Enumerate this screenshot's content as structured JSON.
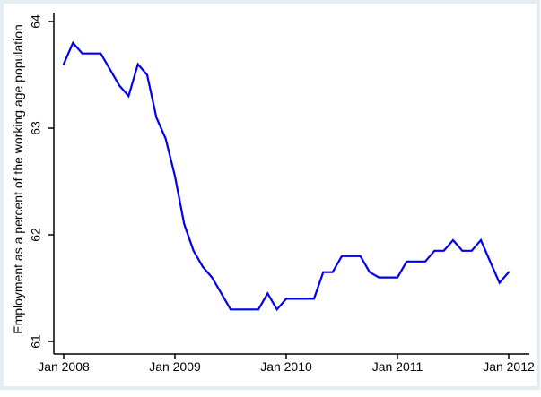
{
  "figure": {
    "background_color": "#ffffff",
    "frame_color": "#e3edf2",
    "axis_color": "#000000",
    "text_color": "#000000"
  },
  "chart_data": {
    "type": "line",
    "title": "",
    "xlabel": "",
    "ylabel": "Employment as a percent of the working age population",
    "ylim": [
      61,
      64
    ],
    "y_ticks": [
      "61",
      "62",
      "63",
      "64"
    ],
    "x_tick_labels": [
      "Jan 2008",
      "Jan 2009",
      "Jan 2010",
      "Jan 2011",
      "Jan 2012"
    ],
    "grid": false,
    "legend_position": "none",
    "marker": "none",
    "series": [
      {
        "name": "Employment as a percent of the working age population",
        "color": "#0000ee",
        "frequency": "monthly",
        "x": [
          "Jan 2008",
          "Feb 2008",
          "Mar 2008",
          "Apr 2008",
          "May 2008",
          "Jun 2008",
          "Jul 2008",
          "Aug 2008",
          "Sep 2008",
          "Oct 2008",
          "Nov 2008",
          "Dec 2008",
          "Jan 2009",
          "Feb 2009",
          "Mar 2009",
          "Apr 2009",
          "May 2009",
          "Jun 2009",
          "Jul 2009",
          "Aug 2009",
          "Sep 2009",
          "Oct 2009",
          "Nov 2009",
          "Dec 2009",
          "Jan 2010",
          "Feb 2010",
          "Mar 2010",
          "Apr 2010",
          "May 2010",
          "Jun 2010",
          "Jul 2010",
          "Aug 2010",
          "Sep 2010",
          "Oct 2010",
          "Nov 2010",
          "Dec 2010",
          "Jan 2011",
          "Feb 2011",
          "Mar 2011",
          "Apr 2011",
          "May 2011",
          "Jun 2011",
          "Jul 2011",
          "Aug 2011",
          "Sep 2011",
          "Oct 2011",
          "Nov 2011",
          "Dec 2011",
          "Jan 2012"
        ],
        "values": [
          63.6,
          63.8,
          63.7,
          63.7,
          63.7,
          63.55,
          63.4,
          63.3,
          63.6,
          63.5,
          63.1,
          62.9,
          62.55,
          62.1,
          61.85,
          61.7,
          61.6,
          61.45,
          61.3,
          61.3,
          61.3,
          61.3,
          61.45,
          61.3,
          61.4,
          61.4,
          61.4,
          61.4,
          61.65,
          61.65,
          61.8,
          61.8,
          61.8,
          61.65,
          61.6,
          61.6,
          61.6,
          61.75,
          61.75,
          61.75,
          61.85,
          61.85,
          61.95,
          61.85,
          61.85,
          61.95,
          61.75,
          61.55,
          61.65
        ]
      }
    ]
  }
}
